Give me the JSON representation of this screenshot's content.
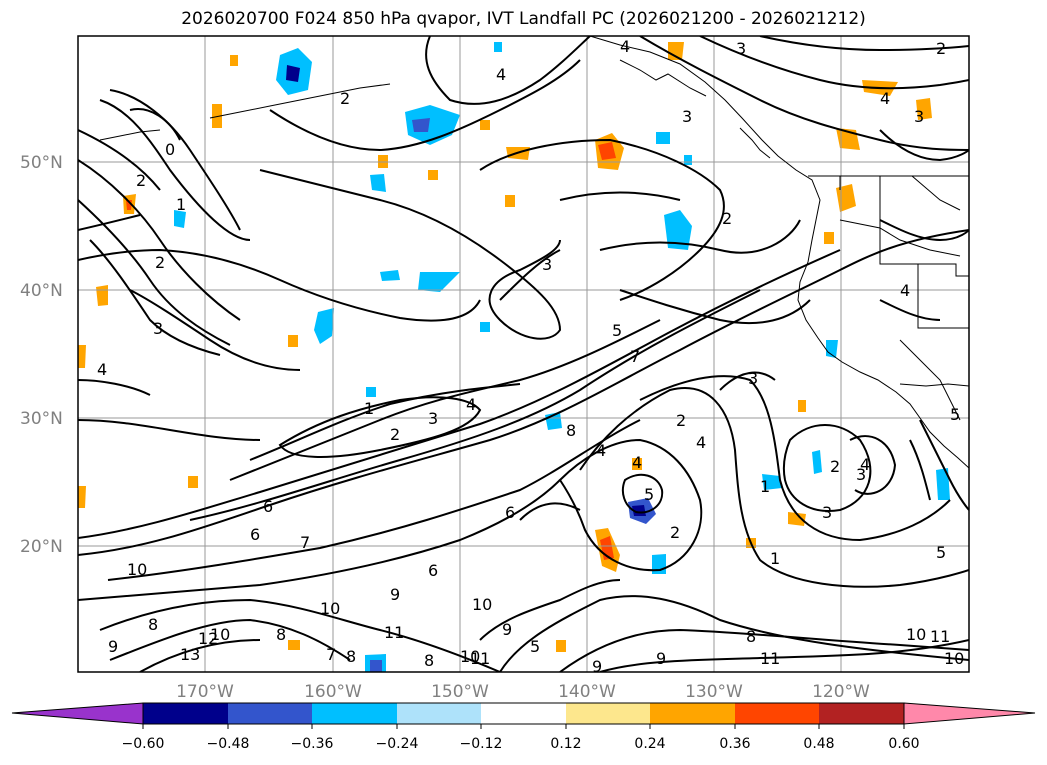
{
  "title": "2026020700 F024 850 hPa qvapor, IVT Landfall PC (2026021200 - 2026021212)",
  "axes": {
    "lat_ticks": [
      "50°N",
      "40°N",
      "30°N",
      "20°N"
    ],
    "lon_ticks": [
      "170°W",
      "160°W",
      "150°W",
      "140°W",
      "130°W",
      "120°W"
    ]
  },
  "colorbar": {
    "colors": [
      "#9933cc",
      "#00008b",
      "#3355cc",
      "#00bfff",
      "#aee2fa",
      "#ffffff",
      "#fde78d",
      "#ffa500",
      "#ff4500",
      "#b22222",
      "#ff88aa"
    ],
    "labels": [
      "−0.60",
      "−0.48",
      "−0.36",
      "−0.24",
      "−0.12",
      "0.12",
      "0.24",
      "0.36",
      "0.48",
      "0.60"
    ]
  },
  "contour_labels": [
    "0",
    "2",
    "1",
    "2",
    "3",
    "4",
    "1",
    "2",
    "3",
    "4",
    "6",
    "6",
    "7",
    "10",
    "8",
    "9",
    "13",
    "12",
    "10",
    "8",
    "10",
    "7",
    "8",
    "8",
    "9",
    "11",
    "6",
    "10",
    "9",
    "6",
    "8",
    "5",
    "7",
    "4",
    "2",
    "4",
    "3",
    "3",
    "2",
    "1",
    "2",
    "3",
    "4",
    "4",
    "1",
    "3",
    "2",
    "2",
    "3",
    "4",
    "3",
    "5",
    "8",
    "9",
    "10",
    "11",
    "10",
    "9",
    "11",
    "4",
    "2",
    "5",
    "4",
    "10",
    "5",
    "11",
    "5",
    "4",
    "3"
  ]
}
